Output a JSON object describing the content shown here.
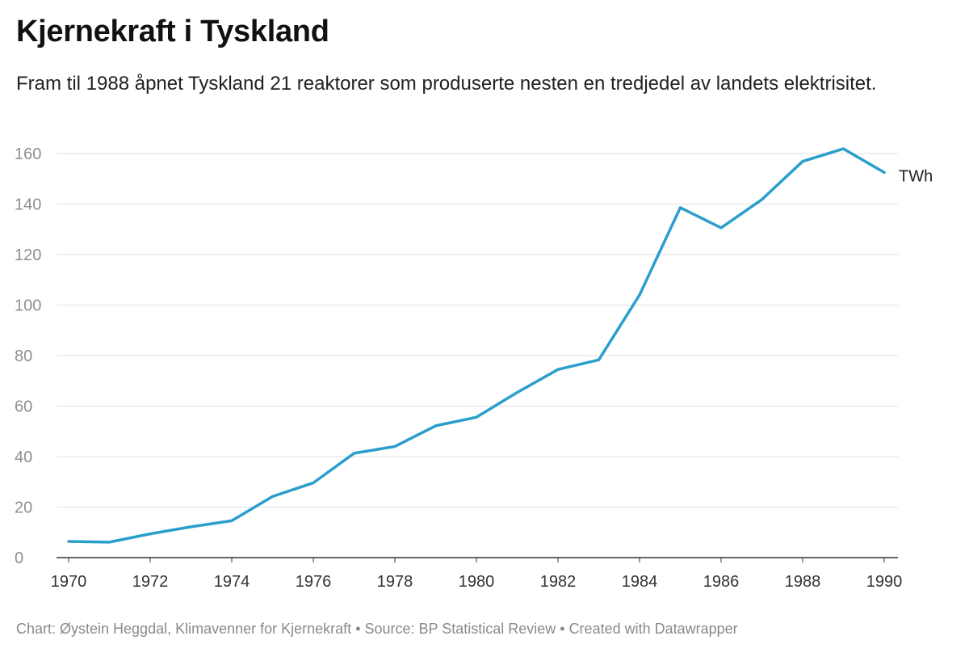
{
  "header": {
    "title": "Kjernekraft i Tyskland",
    "subtitle": "Fram til 1988 åpnet Tyskland 21 reaktorer som produserte nesten en tredjedel av landets elektrisitet."
  },
  "footer": {
    "credit": "Chart: Øystein Heggdal, Klimavenner for Kjernekraft • Source: BP Statistical Review • Created with Datawrapper"
  },
  "colors": {
    "line": "#2a9fcb",
    "grid": "#e2e2e2",
    "axis": "#333333"
  },
  "chart_data": {
    "type": "line",
    "title": "Kjernekraft i Tyskland",
    "xlabel": "",
    "ylabel": "",
    "x": [
      1970,
      1971,
      1972,
      1973,
      1974,
      1975,
      1976,
      1977,
      1978,
      1979,
      1980,
      1981,
      1982,
      1983,
      1984,
      1985,
      1986,
      1987,
      1988,
      1989,
      1990
    ],
    "series": [
      {
        "name": "TWh",
        "values": [
          6.4,
          6.1,
          9.4,
          12.2,
          14.6,
          24.2,
          29.6,
          41.3,
          44.0,
          52.2,
          55.6,
          65.4,
          74.5,
          78.3,
          104.0,
          138.6,
          130.6,
          141.8,
          156.9,
          161.9,
          152.5
        ]
      }
    ],
    "xlim": [
      1970,
      1990
    ],
    "ylim": [
      0,
      160
    ],
    "yticks": [
      0,
      20,
      40,
      60,
      80,
      100,
      120,
      140,
      160
    ],
    "xticks": [
      1970,
      1972,
      1974,
      1976,
      1978,
      1980,
      1982,
      1984,
      1986,
      1988,
      1990
    ],
    "grid": true,
    "legend": "none"
  }
}
